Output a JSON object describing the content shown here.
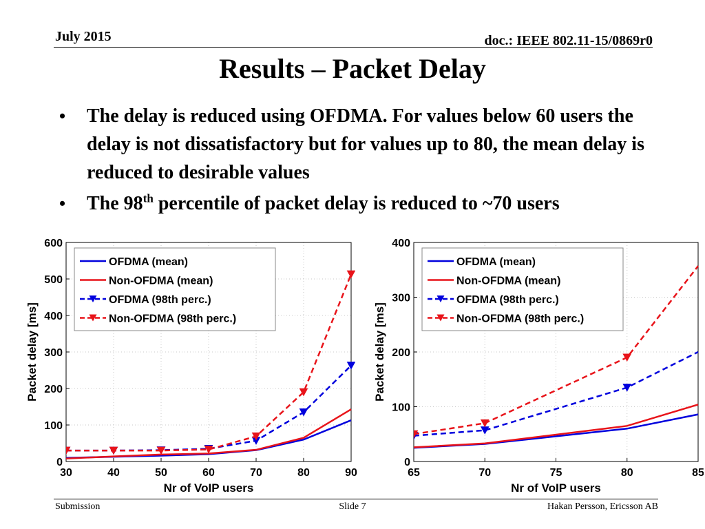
{
  "header": {
    "date": "July 2015",
    "doc": "doc.: IEEE 802.11-15/0869r0"
  },
  "title": "Results – Packet Delay",
  "bullets": [
    {
      "text": "The delay is reduced using OFDMA. For values below 60 users the delay is not dissatisfactory but for values up to 80, the mean delay is reduced to desirable values"
    },
    {
      "pre": "The 98",
      "sup": "th",
      "post": " percentile of packet delay is reduced to ~70 users"
    }
  ],
  "footer": {
    "left": "Submission",
    "center": "Slide 7",
    "right": "Hakan Persson, Ericsson AB"
  },
  "colors": {
    "ofdma": "#0000dd",
    "non_ofdma": "#e8141a"
  },
  "chart_data": [
    {
      "type": "line",
      "xlabel": "Nr of VoIP users",
      "ylabel": "Packet delay [ms]",
      "xlim": [
        30,
        90
      ],
      "ylim": [
        0,
        600
      ],
      "xticks": [
        30,
        40,
        50,
        60,
        70,
        80,
        90
      ],
      "yticks": [
        0,
        100,
        200,
        300,
        400,
        500,
        600
      ],
      "grid": true,
      "legend_position": "top-left",
      "x": [
        30,
        40,
        50,
        60,
        70,
        80,
        90
      ],
      "series": [
        {
          "name": "OFDMA (mean)",
          "color": "ofdma",
          "dash": false,
          "marker": false,
          "values": [
            10,
            13,
            16,
            20,
            31,
            60,
            113
          ]
        },
        {
          "name": "Non-OFDMA (mean)",
          "color": "non_ofdma",
          "dash": false,
          "marker": false,
          "values": [
            8,
            14,
            19,
            22,
            32,
            65,
            143
          ]
        },
        {
          "name": "OFDMA (98th perc.)",
          "color": "ofdma",
          "dash": true,
          "marker": true,
          "values": [
            30,
            30,
            31,
            35,
            57,
            135,
            263
          ]
        },
        {
          "name": "Non-OFDMA (98th perc.)",
          "color": "non_ofdma",
          "dash": true,
          "marker": true,
          "values": [
            30,
            30,
            30,
            33,
            69,
            190,
            513
          ]
        }
      ]
    },
    {
      "type": "line",
      "xlabel": "Nr of VoIP users",
      "ylabel": "Packet delay [ms]",
      "xlim": [
        65,
        85
      ],
      "ylim": [
        0,
        400
      ],
      "xticks": [
        65,
        70,
        75,
        80,
        85
      ],
      "yticks": [
        0,
        100,
        200,
        300,
        400
      ],
      "grid": true,
      "legend_position": "top-left",
      "x": [
        65,
        70,
        80,
        85
      ],
      "series": [
        {
          "name": "OFDMA (mean)",
          "color": "ofdma",
          "dash": false,
          "marker": false,
          "values": [
            25,
            32,
            60,
            86
          ]
        },
        {
          "name": "Non-OFDMA (mean)",
          "color": "non_ofdma",
          "dash": false,
          "marker": false,
          "values": [
            26,
            33,
            65,
            104
          ]
        },
        {
          "name": "OFDMA (98th perc.)",
          "color": "ofdma",
          "dash": true,
          "marker": true,
          "values": [
            47,
            57,
            135,
            200
          ]
        },
        {
          "name": "Non-OFDMA (98th perc.)",
          "color": "non_ofdma",
          "dash": true,
          "marker": true,
          "values": [
            50,
            70,
            190,
            357
          ]
        }
      ]
    }
  ]
}
